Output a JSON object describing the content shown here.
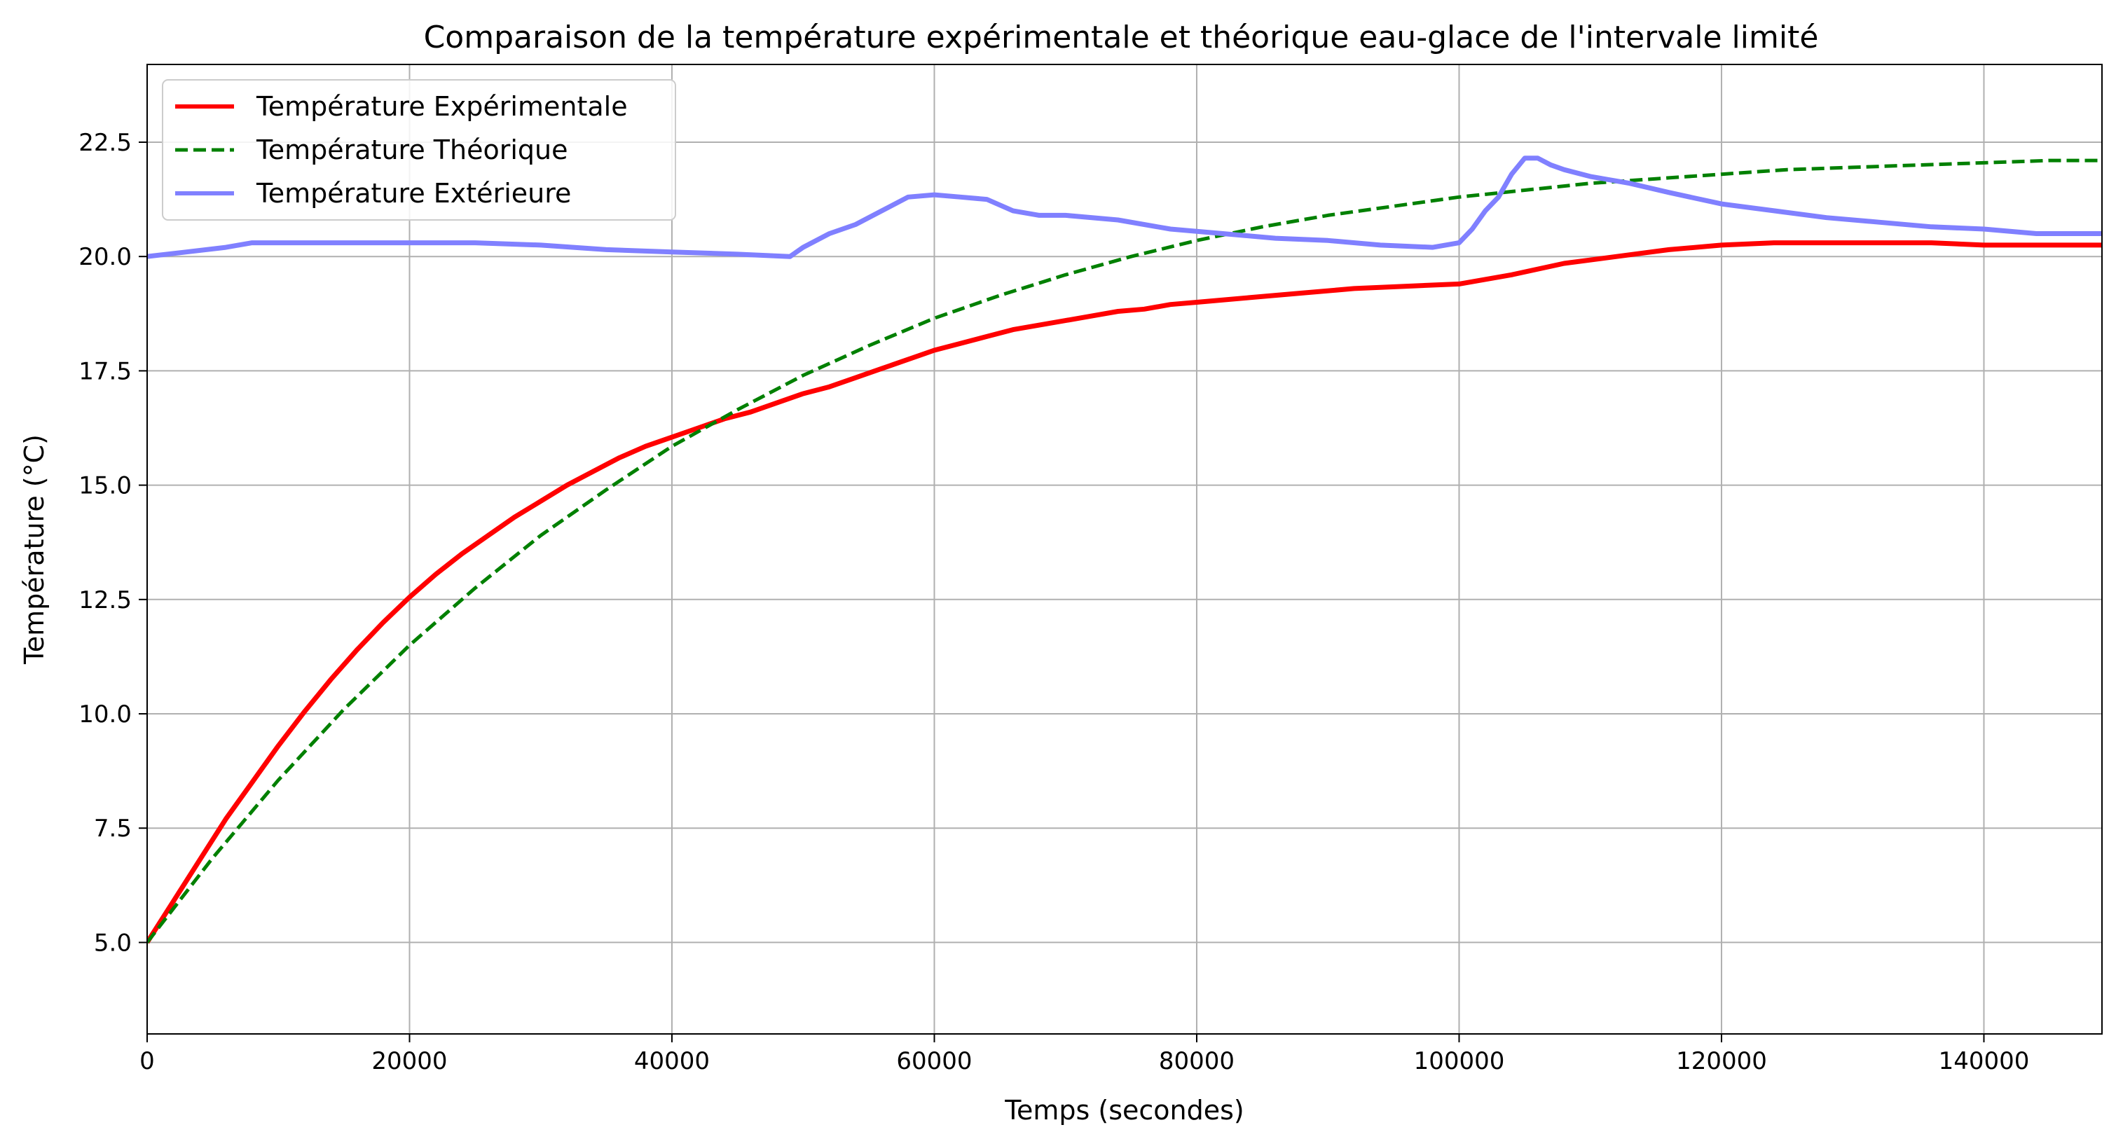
{
  "chart_data": {
    "type": "line",
    "title": "Comparaison de la température expérimentale et théorique eau-glace de l'intervale limité",
    "xlabel": "Temps (secondes)",
    "ylabel": "Température (°C)",
    "xlim": [
      0,
      149000
    ],
    "ylim": [
      3.0,
      24.2
    ],
    "xticks": [
      0,
      20000,
      40000,
      60000,
      80000,
      100000,
      120000,
      140000
    ],
    "xtick_labels": [
      "0",
      "20000",
      "40000",
      "60000",
      "80000",
      "100000",
      "120000",
      "140000"
    ],
    "yticks": [
      5.0,
      7.5,
      10.0,
      12.5,
      15.0,
      17.5,
      20.0,
      22.5
    ],
    "ytick_labels": [
      "5.0",
      "7.5",
      "10.0",
      "12.5",
      "15.0",
      "17.5",
      "20.0",
      "22.5"
    ],
    "grid": true,
    "legend_position": "top-left",
    "series": [
      {
        "name": "Température Expérimentale",
        "color": "#ff0000",
        "style": "solid",
        "x": [
          0,
          2000,
          4000,
          6000,
          8000,
          10000,
          12000,
          14000,
          16000,
          18000,
          20000,
          22000,
          24000,
          26000,
          28000,
          30000,
          32000,
          34000,
          36000,
          38000,
          40000,
          42000,
          44000,
          46000,
          48000,
          50000,
          52000,
          54000,
          56000,
          58000,
          60000,
          62000,
          64000,
          66000,
          68000,
          70000,
          72000,
          74000,
          76000,
          78000,
          80000,
          84000,
          88000,
          92000,
          96000,
          100000,
          104000,
          108000,
          112000,
          116000,
          120000,
          124000,
          128000,
          132000,
          136000,
          140000,
          144000,
          149000
        ],
        "y": [
          5.0,
          5.9,
          6.8,
          7.7,
          8.5,
          9.3,
          10.05,
          10.75,
          11.4,
          12.0,
          12.55,
          13.05,
          13.5,
          13.9,
          14.3,
          14.65,
          15.0,
          15.3,
          15.6,
          15.85,
          16.05,
          16.25,
          16.45,
          16.6,
          16.8,
          17.0,
          17.15,
          17.35,
          17.55,
          17.75,
          17.95,
          18.1,
          18.25,
          18.4,
          18.5,
          18.6,
          18.7,
          18.8,
          18.85,
          18.95,
          19.0,
          19.1,
          19.2,
          19.3,
          19.35,
          19.4,
          19.6,
          19.85,
          20.0,
          20.15,
          20.25,
          20.3,
          20.3,
          20.3,
          20.3,
          20.25,
          20.25,
          20.25
        ]
      },
      {
        "name": "Température Théorique",
        "color": "#008000",
        "style": "dashed",
        "x": [
          0,
          5000,
          10000,
          15000,
          20000,
          25000,
          30000,
          35000,
          40000,
          45000,
          50000,
          55000,
          60000,
          65000,
          70000,
          75000,
          80000,
          85000,
          90000,
          95000,
          100000,
          105000,
          110000,
          115000,
          120000,
          125000,
          130000,
          135000,
          140000,
          145000,
          149000
        ],
        "y": [
          5.0,
          6.85,
          8.55,
          10.1,
          11.5,
          12.75,
          13.9,
          14.9,
          15.85,
          16.65,
          17.4,
          18.05,
          18.65,
          19.15,
          19.6,
          20.0,
          20.35,
          20.65,
          20.9,
          21.1,
          21.3,
          21.45,
          21.6,
          21.7,
          21.8,
          21.9,
          21.95,
          22.0,
          22.05,
          22.1,
          22.1
        ]
      },
      {
        "name": "Température Extérieure",
        "color": "#8080ff",
        "style": "solid",
        "x": [
          0,
          3000,
          6000,
          8000,
          10000,
          13000,
          16000,
          20000,
          25000,
          30000,
          35000,
          40000,
          45000,
          49000,
          50000,
          52000,
          54000,
          56000,
          58000,
          60000,
          62000,
          64000,
          66000,
          68000,
          70000,
          74000,
          78000,
          82000,
          86000,
          90000,
          94000,
          98000,
          100000,
          101000,
          102000,
          103000,
          104000,
          105000,
          106000,
          107000,
          108000,
          110000,
          113000,
          116000,
          120000,
          124000,
          128000,
          132000,
          136000,
          140000,
          144000,
          149000
        ],
        "y": [
          20.0,
          20.1,
          20.2,
          20.3,
          20.3,
          20.3,
          20.3,
          20.3,
          20.3,
          20.25,
          20.15,
          20.1,
          20.05,
          20.0,
          20.2,
          20.5,
          20.7,
          21.0,
          21.3,
          21.35,
          21.3,
          21.25,
          21.0,
          20.9,
          20.9,
          20.8,
          20.6,
          20.5,
          20.4,
          20.35,
          20.25,
          20.2,
          20.3,
          20.6,
          21.0,
          21.3,
          21.8,
          22.15,
          22.15,
          22.0,
          21.9,
          21.75,
          21.6,
          21.4,
          21.15,
          21.0,
          20.85,
          20.75,
          20.65,
          20.6,
          20.5,
          20.5
        ]
      }
    ]
  }
}
